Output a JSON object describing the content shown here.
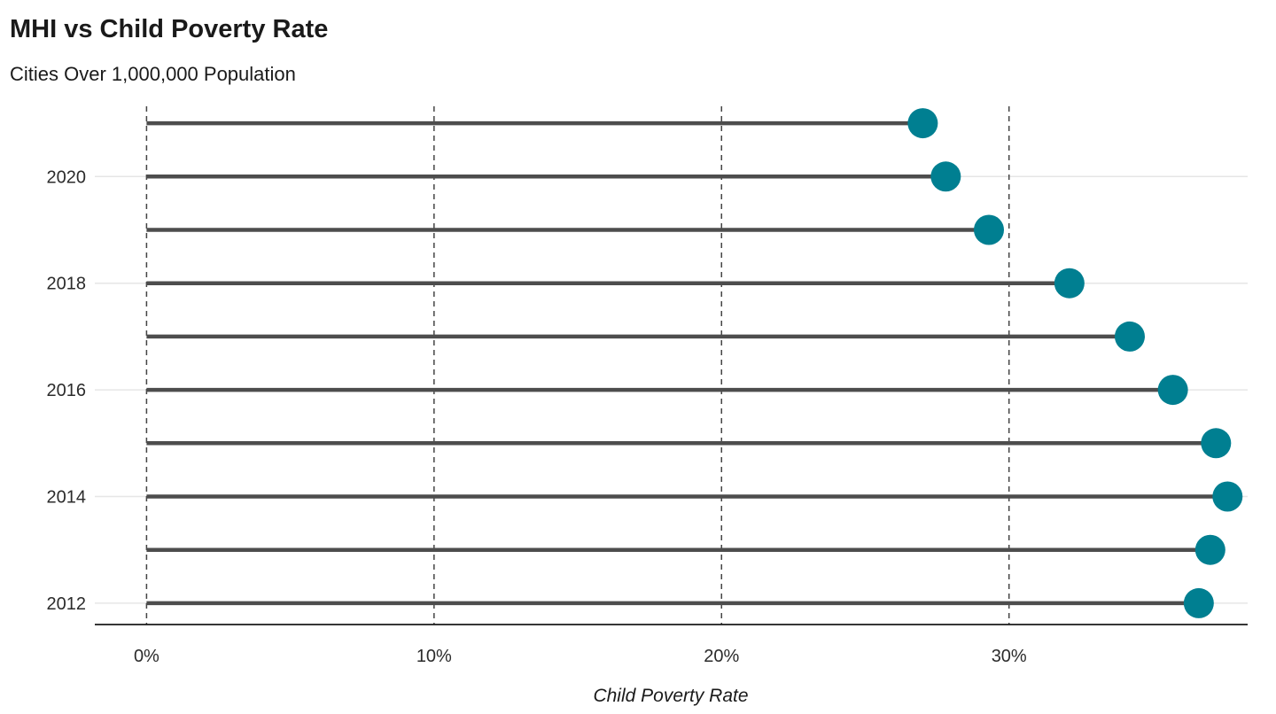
{
  "chart_data": {
    "type": "lollipop",
    "title": "MHI vs Child Poverty Rate",
    "subtitle": "Cities Over 1,000,000 Population",
    "xlabel": "Child Poverty Rate",
    "ylabel": "",
    "xlim": [
      -1.8,
      38.3
    ],
    "ylim": [
      2011.6,
      2021.4
    ],
    "x_ticks": [
      0,
      10,
      20,
      30
    ],
    "x_tick_labels": [
      "0%",
      "10%",
      "20%",
      "30%"
    ],
    "y_ticks": [
      2012,
      2014,
      2016,
      2018,
      2020
    ],
    "y_tick_labels": [
      "2012",
      "2014",
      "2016",
      "2018",
      "2020"
    ],
    "grid": "horizontal at labeled years; dashed vertical at x ticks",
    "legend": "none",
    "series": [
      {
        "points": [
          {
            "year": 2012,
            "value": 36.6
          },
          {
            "year": 2013,
            "value": 37.0
          },
          {
            "year": 2014,
            "value": 37.6
          },
          {
            "year": 2015,
            "value": 37.2
          },
          {
            "year": 2016,
            "value": 35.7
          },
          {
            "year": 2017,
            "value": 34.2
          },
          {
            "year": 2018,
            "value": 32.1
          },
          {
            "year": 2019,
            "value": 29.3
          },
          {
            "year": 2020,
            "value": 27.8
          },
          {
            "year": 2021,
            "value": 27.0
          }
        ]
      }
    ],
    "colors": {
      "point": "#007f91",
      "stem": "#4d4d4d",
      "dashed": "#444444",
      "grid": "#e6e6e6",
      "axis": "#1a1a1a"
    }
  }
}
